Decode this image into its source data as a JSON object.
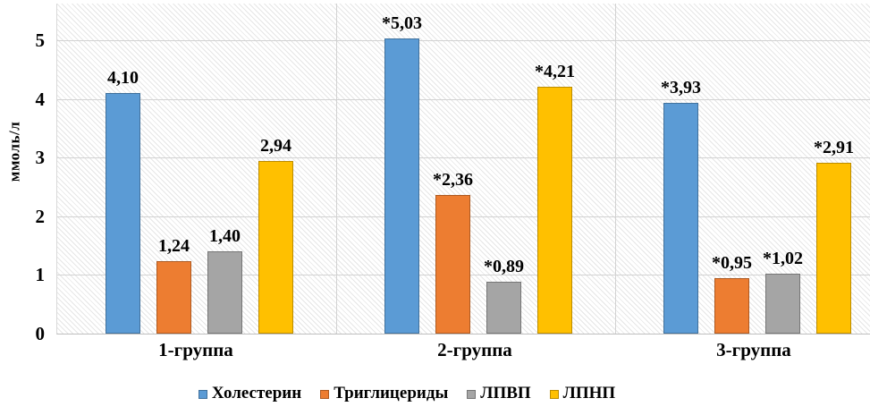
{
  "chart_data": {
    "type": "bar",
    "title": "",
    "xlabel": "",
    "ylabel": "ммоль/л",
    "categories": [
      "1-группа",
      "2-группа",
      "3-группа"
    ],
    "series": [
      {
        "name": "Холестерин",
        "color": "#5B9BD5",
        "border_color": "#41719C",
        "values": [
          4.1,
          5.03,
          3.93
        ],
        "data_labels": [
          "4,10",
          "*5,03",
          "*3,93"
        ]
      },
      {
        "name": "Триглицериды",
        "color": "#ED7D31",
        "border_color": "#AE5A21",
        "values": [
          1.24,
          2.36,
          0.95
        ],
        "data_labels": [
          "1,24",
          "*2,36",
          "*0,95"
        ]
      },
      {
        "name": "ЛПВП",
        "color": "#A5A5A5",
        "border_color": "#767676",
        "values": [
          1.4,
          0.89,
          1.02
        ],
        "data_labels": [
          "1,40",
          "*0,89",
          "*1,02"
        ]
      },
      {
        "name": "ЛПНП",
        "color": "#FFC000",
        "border_color": "#BC8C00",
        "values": [
          2.94,
          4.21,
          2.91
        ],
        "data_labels": [
          "2,94",
          "*4,21",
          "*2,91"
        ]
      }
    ],
    "y_ticks": [
      0,
      1,
      2,
      3,
      4,
      5
    ],
    "ylim": [
      0,
      5.62
    ],
    "grid": true,
    "legend_position": "bottom"
  }
}
